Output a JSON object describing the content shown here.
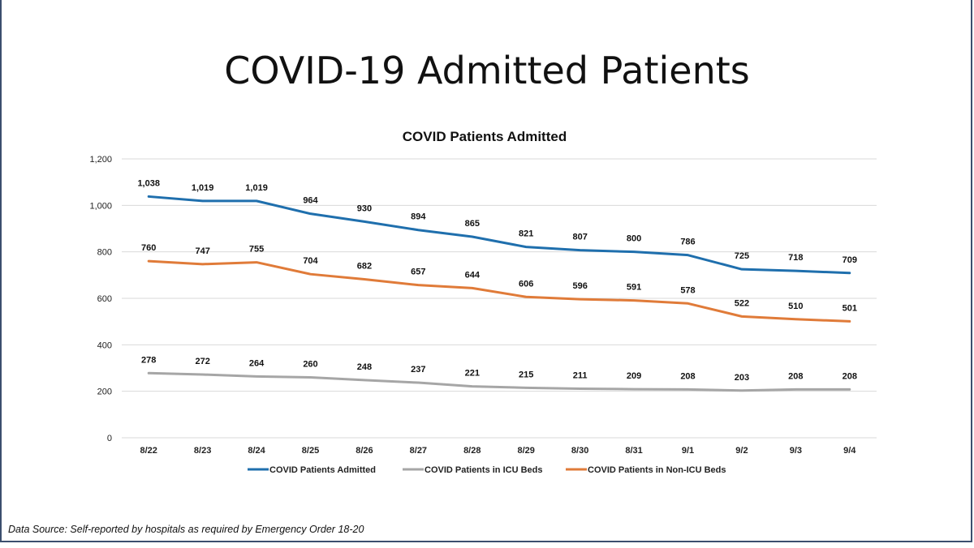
{
  "slide": {
    "title": "COVID-19 Admitted Patients",
    "source_note": "Data Source: Self-reported by hospitals as required by Emergency Order 18-20"
  },
  "chart_data": {
    "type": "line",
    "title": "COVID Patients Admitted",
    "xlabel": "",
    "ylabel": "",
    "categories": [
      "8/22",
      "8/23",
      "8/24",
      "8/25",
      "8/26",
      "8/27",
      "8/28",
      "8/29",
      "8/30",
      "8/31",
      "9/1",
      "9/2",
      "9/3",
      "9/4"
    ],
    "ylim": [
      0,
      1200
    ],
    "yticks": [
      0,
      200,
      400,
      600,
      800,
      1000,
      1200
    ],
    "ytick_labels": [
      "0",
      "200",
      "400",
      "600",
      "800",
      "1,000",
      "1,200"
    ],
    "grid": true,
    "legend_position": "bottom",
    "series": [
      {
        "name": "COVID Patients Admitted",
        "color": "#1f6fad",
        "values": [
          1038,
          1019,
          1019,
          964,
          930,
          894,
          865,
          821,
          807,
          800,
          786,
          725,
          718,
          709
        ],
        "labels": [
          "1,038",
          "1,019",
          "1,019",
          "964",
          "930",
          "894",
          "865",
          "821",
          "807",
          "800",
          "786",
          "725",
          "718",
          "709"
        ]
      },
      {
        "name": "COVID Patients in ICU Beds",
        "color": "#a6a6a6",
        "values": [
          278,
          272,
          264,
          260,
          248,
          237,
          221,
          215,
          211,
          209,
          208,
          203,
          208,
          208
        ],
        "labels": [
          "278",
          "272",
          "264",
          "260",
          "248",
          "237",
          "221",
          "215",
          "211",
          "209",
          "208",
          "203",
          "208",
          "208"
        ]
      },
      {
        "name": "COVID Patients in Non-ICU Beds",
        "color": "#e07b39",
        "values": [
          760,
          747,
          755,
          704,
          682,
          657,
          644,
          606,
          596,
          591,
          578,
          522,
          510,
          501
        ],
        "labels": [
          "760",
          "747",
          "755",
          "704",
          "682",
          "657",
          "644",
          "606",
          "596",
          "591",
          "578",
          "522",
          "510",
          "501"
        ]
      }
    ]
  }
}
